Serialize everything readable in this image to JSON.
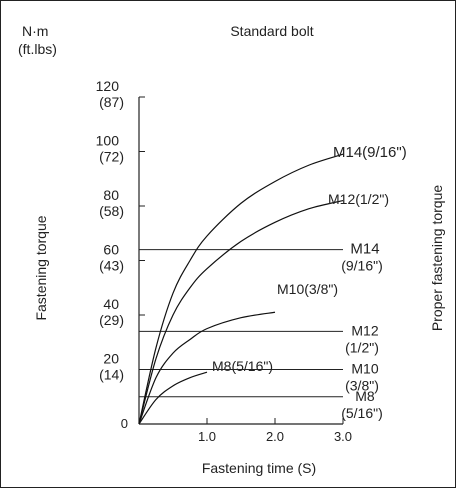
{
  "chart_data": {
    "type": "line",
    "title": "Standard bolt",
    "unit_label": [
      "N·m",
      "(ft.lbs)"
    ],
    "xlabel": "Fastening time (S)",
    "ylabel": "Fastening torque",
    "right_label": "Proper fastening torque",
    "xlim": [
      0,
      3.0
    ],
    "ylim": [
      0,
      120
    ],
    "x_ticks": [
      {
        "value": 1.0,
        "label": "1.0"
      },
      {
        "value": 2.0,
        "label": "2.0"
      },
      {
        "value": 3.0,
        "label": "3.0"
      }
    ],
    "y_ticks": [
      {
        "value": 0,
        "label": [
          "0"
        ]
      },
      {
        "value": 20,
        "label": [
          "20",
          "(14)"
        ]
      },
      {
        "value": 40,
        "label": [
          "40",
          "(29)"
        ]
      },
      {
        "value": 60,
        "label": [
          "60",
          "(43)"
        ]
      },
      {
        "value": 80,
        "label": [
          "80",
          "(58)"
        ]
      },
      {
        "value": 100,
        "label": [
          "100",
          "(72)"
        ]
      },
      {
        "value": 120,
        "label": [
          "120",
          "(87)"
        ]
      }
    ],
    "series": [
      {
        "name": "M14(9/16\")",
        "points": [
          [
            0,
            0
          ],
          [
            0.25,
            28
          ],
          [
            0.5,
            48
          ],
          [
            0.75,
            60
          ],
          [
            1.0,
            69
          ],
          [
            1.5,
            81
          ],
          [
            2.0,
            89
          ],
          [
            2.5,
            95
          ],
          [
            3.0,
            99
          ]
        ]
      },
      {
        "name": "M12(1/2\")",
        "points": [
          [
            0,
            0
          ],
          [
            0.25,
            24
          ],
          [
            0.5,
            40
          ],
          [
            0.75,
            50
          ],
          [
            1.0,
            57
          ],
          [
            1.5,
            67
          ],
          [
            2.0,
            74
          ],
          [
            2.5,
            79
          ],
          [
            3.0,
            82
          ]
        ]
      },
      {
        "name": "M10(3/8\")",
        "points": [
          [
            0,
            0
          ],
          [
            0.25,
            17
          ],
          [
            0.5,
            26
          ],
          [
            0.75,
            31
          ],
          [
            1.0,
            35
          ],
          [
            1.5,
            39
          ],
          [
            2.0,
            41
          ]
        ]
      },
      {
        "name": "M8(5/16\")",
        "points": [
          [
            0,
            0
          ],
          [
            0.25,
            9
          ],
          [
            0.5,
            14
          ],
          [
            0.75,
            17
          ],
          [
            1.0,
            19
          ]
        ]
      }
    ],
    "proper_torque": [
      {
        "name": "M14",
        "size": "(9/16\")",
        "value": 64
      },
      {
        "name": "M12",
        "size": "(1/2\")",
        "value": 34
      },
      {
        "name": "M10",
        "size": "(3/8\")",
        "value": 20
      },
      {
        "name": "M8",
        "size": "(5/16\")",
        "value": 10
      }
    ]
  }
}
